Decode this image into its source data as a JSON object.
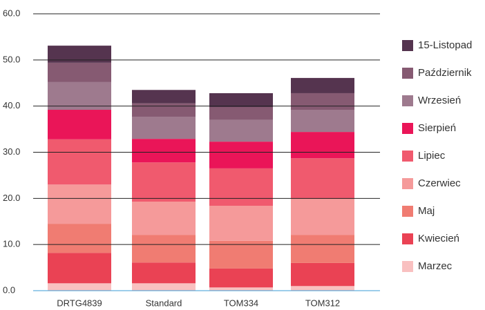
{
  "chart_data": {
    "type": "stacked-bar",
    "categories": [
      "DRTG4839",
      "Standard",
      "TOM334",
      "TOM312"
    ],
    "series": [
      {
        "name": "Marzec",
        "color": "#f9c0c0",
        "values": [
          1.6,
          1.6,
          0.7,
          1.0
        ]
      },
      {
        "name": "Kwiecień",
        "color": "#ea4254",
        "values": [
          6.6,
          4.5,
          4.1,
          5.0
        ]
      },
      {
        "name": "Maj",
        "color": "#f07c72",
        "values": [
          6.3,
          6.0,
          6.0,
          6.1
        ]
      },
      {
        "name": "Czerwiec",
        "color": "#f59a9a",
        "values": [
          8.5,
          7.2,
          7.6,
          7.8
        ]
      },
      {
        "name": "Lipiec",
        "color": "#f05a6e",
        "values": [
          9.8,
          8.5,
          8.1,
          8.8
        ]
      },
      {
        "name": "Sierpień",
        "color": "#ea1558",
        "values": [
          6.4,
          5.1,
          5.8,
          5.7
        ]
      },
      {
        "name": "Wrzesień",
        "color": "#9e7a8e",
        "values": [
          6.0,
          4.8,
          4.7,
          4.8
        ]
      },
      {
        "name": "Październik",
        "color": "#865a72",
        "values": [
          4.2,
          2.9,
          2.8,
          3.6
        ]
      },
      {
        "name": "15-Listopad",
        "color": "#55344f",
        "values": [
          3.7,
          2.9,
          3.0,
          3.3
        ]
      }
    ],
    "ylim": [
      0,
      60
    ],
    "yticks": [
      {
        "value": 0,
        "label": "0.0"
      },
      {
        "value": 10,
        "label": "10.0"
      },
      {
        "value": 20,
        "label": "20.0"
      },
      {
        "value": 30,
        "label": "30.0"
      },
      {
        "value": 40,
        "label": "40.0"
      },
      {
        "value": 50,
        "label": "50.0"
      },
      {
        "value": 60,
        "label": "60.0"
      }
    ],
    "grid": true
  }
}
